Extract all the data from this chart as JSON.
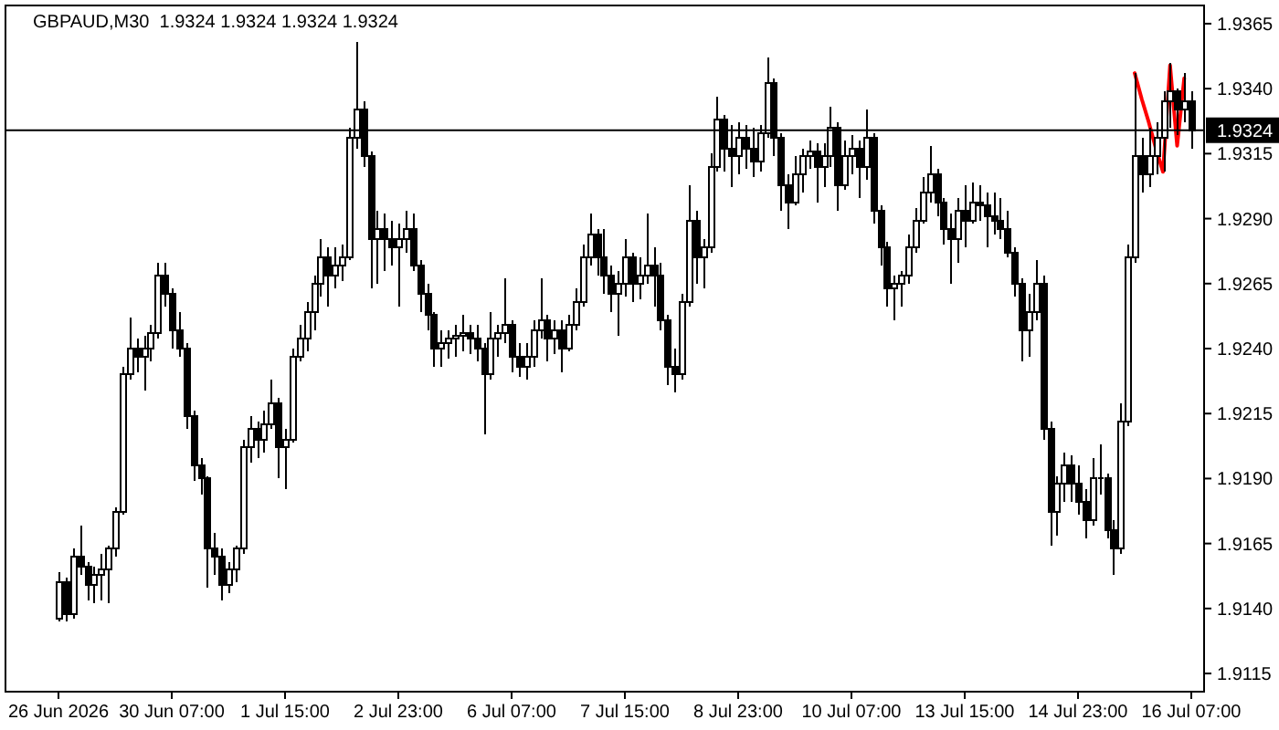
{
  "chart_data": {
    "type": "candlestick",
    "title": "GBPAUD,M30  1.9324 1.9324 1.9324 1.9324",
    "color": "#000000",
    "categories": [
      "26 Jun 2026",
      null,
      null,
      null,
      null,
      null,
      null,
      null,
      null,
      null,
      null,
      null,
      null,
      null,
      null,
      null,
      "30 Jun 07:00",
      null,
      null,
      null,
      null,
      null,
      null,
      null,
      null,
      null,
      null,
      null,
      null,
      null,
      null,
      null,
      "1 Jul 15:00",
      null,
      null,
      null,
      null,
      null,
      null,
      null,
      null,
      null,
      null,
      null,
      null,
      null,
      null,
      null,
      "2 Jul 23:00",
      null,
      null,
      null,
      null,
      null,
      null,
      null,
      null,
      null,
      null,
      null,
      null,
      null,
      null,
      null,
      "6 Jul 07:00",
      null,
      null,
      null,
      null,
      null,
      null,
      null,
      null,
      null,
      null,
      null,
      null,
      null,
      null,
      null,
      "7 Jul 15:00",
      null,
      null,
      null,
      null,
      null,
      null,
      null,
      null,
      null,
      null,
      null,
      null,
      null,
      null,
      null,
      "8 Jul 23:00",
      null,
      null,
      null,
      null,
      null,
      null,
      null,
      null,
      null,
      null,
      null,
      null,
      null,
      null,
      null,
      "10 Jul 07:00",
      null,
      null,
      null,
      null,
      null,
      null,
      null,
      null,
      null,
      null,
      null,
      null,
      null,
      null,
      null,
      "13 Jul 15:00",
      null,
      null,
      null,
      null,
      null,
      null,
      null,
      null,
      null,
      null,
      null,
      null,
      null,
      null,
      null,
      "14 Jul 23:00",
      null,
      null,
      null,
      null,
      null,
      null,
      null,
      null,
      null,
      null,
      null,
      null,
      null,
      null,
      null,
      "16 Jul 07:00"
    ],
    "ohlc": [
      [
        1.9136,
        1.9154,
        1.9135,
        1.915
      ],
      [
        1.915,
        1.9152,
        1.9135,
        1.9138
      ],
      [
        1.9138,
        1.9163,
        1.9136,
        1.916
      ],
      [
        1.916,
        1.9172,
        1.9153,
        1.9156
      ],
      [
        1.9156,
        1.9158,
        1.9143,
        1.9149
      ],
      [
        1.9149,
        1.9156,
        1.9142,
        1.9153
      ],
      [
        1.9153,
        1.9161,
        1.9143,
        1.9155
      ],
      [
        1.9155,
        1.9164,
        1.9142,
        1.9163
      ],
      [
        1.9163,
        1.9179,
        1.916,
        1.9177
      ],
      [
        1.9177,
        1.9233,
        1.9176,
        1.923
      ],
      [
        1.923,
        1.9252,
        1.9228,
        1.924
      ],
      [
        1.924,
        1.9244,
        1.9231,
        1.9237
      ],
      [
        1.9237,
        1.9245,
        1.9224,
        1.924
      ],
      [
        1.924,
        1.9249,
        1.9235,
        1.9246
      ],
      [
        1.9246,
        1.9273,
        1.9244,
        1.9268
      ],
      [
        1.9268,
        1.9273,
        1.9256,
        1.9261
      ],
      [
        1.9261,
        1.9263,
        1.924,
        1.9247
      ],
      [
        1.9247,
        1.9254,
        1.9237,
        1.924
      ],
      [
        1.924,
        1.9242,
        1.9209,
        1.9214
      ],
      [
        1.9214,
        1.9216,
        1.9189,
        1.9195
      ],
      [
        1.9195,
        1.9198,
        1.9184,
        1.919
      ],
      [
        1.919,
        1.9191,
        1.9148,
        1.9163
      ],
      [
        1.9163,
        1.9169,
        1.9153,
        1.916
      ],
      [
        1.916,
        1.9163,
        1.9143,
        1.9149
      ],
      [
        1.9149,
        1.9158,
        1.9146,
        1.9155
      ],
      [
        1.9155,
        1.9164,
        1.915,
        1.9163
      ],
      [
        1.9163,
        1.9205,
        1.9161,
        1.9202
      ],
      [
        1.9202,
        1.9214,
        1.9196,
        1.9209
      ],
      [
        1.9209,
        1.9212,
        1.9198,
        1.9205
      ],
      [
        1.9205,
        1.9216,
        1.92,
        1.9211
      ],
      [
        1.9211,
        1.9228,
        1.9209,
        1.9219
      ],
      [
        1.9219,
        1.9221,
        1.919,
        1.9202
      ],
      [
        1.9202,
        1.9209,
        1.9186,
        1.9205
      ],
      [
        1.9205,
        1.924,
        1.9204,
        1.9237
      ],
      [
        1.9237,
        1.9249,
        1.9235,
        1.9244
      ],
      [
        1.9244,
        1.9258,
        1.9239,
        1.9254
      ],
      [
        1.9254,
        1.9268,
        1.9247,
        1.9265
      ],
      [
        1.9265,
        1.9282,
        1.926,
        1.9275
      ],
      [
        1.9275,
        1.9279,
        1.9256,
        1.9268
      ],
      [
        1.9268,
        1.9279,
        1.9263,
        1.9272
      ],
      [
        1.9272,
        1.928,
        1.9266,
        1.9275
      ],
      [
        1.9275,
        1.9325,
        1.9274,
        1.9321
      ],
      [
        1.9321,
        1.9358,
        1.9317,
        1.9332
      ],
      [
        1.9332,
        1.9335,
        1.931,
        1.9314
      ],
      [
        1.9314,
        1.9316,
        1.9263,
        1.9282
      ],
      [
        1.9282,
        1.9293,
        1.9265,
        1.9286
      ],
      [
        1.9286,
        1.9292,
        1.927,
        1.9282
      ],
      [
        1.9282,
        1.9289,
        1.9272,
        1.9279
      ],
      [
        1.9279,
        1.9288,
        1.9256,
        1.9282
      ],
      [
        1.9282,
        1.9293,
        1.9277,
        1.9286
      ],
      [
        1.9286,
        1.9292,
        1.927,
        1.9272
      ],
      [
        1.9272,
        1.9274,
        1.9254,
        1.9261
      ],
      [
        1.9261,
        1.9265,
        1.9247,
        1.9253
      ],
      [
        1.9253,
        1.9254,
        1.9233,
        1.924
      ],
      [
        1.924,
        1.9247,
        1.9233,
        1.9242
      ],
      [
        1.9242,
        1.9247,
        1.9236,
        1.9244
      ],
      [
        1.9244,
        1.9249,
        1.9237,
        1.9245
      ],
      [
        1.9245,
        1.9253,
        1.9239,
        1.9246
      ],
      [
        1.9246,
        1.9249,
        1.9238,
        1.9244
      ],
      [
        1.9244,
        1.9249,
        1.9235,
        1.924
      ],
      [
        1.924,
        1.9242,
        1.9207,
        1.923
      ],
      [
        1.923,
        1.9254,
        1.9228,
        1.9244
      ],
      [
        1.9244,
        1.9249,
        1.9237,
        1.9246
      ],
      [
        1.9246,
        1.9267,
        1.9242,
        1.9249
      ],
      [
        1.9249,
        1.9251,
        1.9231,
        1.9237
      ],
      [
        1.9237,
        1.9242,
        1.9229,
        1.9233
      ],
      [
        1.9233,
        1.9242,
        1.9228,
        1.9237
      ],
      [
        1.9237,
        1.9251,
        1.9233,
        1.9247
      ],
      [
        1.9247,
        1.9267,
        1.9244,
        1.9251
      ],
      [
        1.9251,
        1.9253,
        1.9235,
        1.9244
      ],
      [
        1.9244,
        1.9251,
        1.9238,
        1.9247
      ],
      [
        1.9247,
        1.9251,
        1.9231,
        1.924
      ],
      [
        1.924,
        1.9253,
        1.9239,
        1.9249
      ],
      [
        1.9249,
        1.9263,
        1.9247,
        1.9258
      ],
      [
        1.9258,
        1.928,
        1.9256,
        1.9275
      ],
      [
        1.9275,
        1.9292,
        1.9272,
        1.9284
      ],
      [
        1.9284,
        1.9286,
        1.9268,
        1.9275
      ],
      [
        1.9275,
        1.9286,
        1.9261,
        1.9268
      ],
      [
        1.9268,
        1.9272,
        1.9254,
        1.9261
      ],
      [
        1.9261,
        1.927,
        1.9245,
        1.9265
      ],
      [
        1.9265,
        1.9282,
        1.926,
        1.9275
      ],
      [
        1.9275,
        1.9277,
        1.9258,
        1.9265
      ],
      [
        1.9265,
        1.9275,
        1.9259,
        1.9268
      ],
      [
        1.9268,
        1.9292,
        1.9265,
        1.9272
      ],
      [
        1.9272,
        1.9279,
        1.9256,
        1.9268
      ],
      [
        1.9268,
        1.9273,
        1.9247,
        1.9251
      ],
      [
        1.9251,
        1.9253,
        1.9226,
        1.9233
      ],
      [
        1.9233,
        1.924,
        1.9223,
        1.923
      ],
      [
        1.923,
        1.9261,
        1.9228,
        1.9258
      ],
      [
        1.9258,
        1.9303,
        1.9256,
        1.9289
      ],
      [
        1.9289,
        1.9293,
        1.9265,
        1.9275
      ],
      [
        1.9275,
        1.9282,
        1.9263,
        1.9279
      ],
      [
        1.9279,
        1.9315,
        1.9277,
        1.931
      ],
      [
        1.931,
        1.9337,
        1.9308,
        1.9328
      ],
      [
        1.9328,
        1.933,
        1.9308,
        1.9317
      ],
      [
        1.9317,
        1.9326,
        1.9302,
        1.9314
      ],
      [
        1.9314,
        1.9327,
        1.9307,
        1.9321
      ],
      [
        1.9321,
        1.9326,
        1.9309,
        1.9317
      ],
      [
        1.9317,
        1.9325,
        1.9306,
        1.9312
      ],
      [
        1.9312,
        1.9326,
        1.9308,
        1.9323
      ],
      [
        1.9323,
        1.9352,
        1.9321,
        1.9342
      ],
      [
        1.9342,
        1.9344,
        1.9314,
        1.9321
      ],
      [
        1.9321,
        1.9323,
        1.9293,
        1.9303
      ],
      [
        1.9303,
        1.9307,
        1.9286,
        1.9296
      ],
      [
        1.9296,
        1.9314,
        1.9295,
        1.9307
      ],
      [
        1.9307,
        1.9317,
        1.93,
        1.9314
      ],
      [
        1.9314,
        1.932,
        1.9309,
        1.9316
      ],
      [
        1.9316,
        1.9319,
        1.9296,
        1.931
      ],
      [
        1.931,
        1.9319,
        1.9302,
        1.9314
      ],
      [
        1.9314,
        1.9333,
        1.931,
        1.9325
      ],
      [
        1.9325,
        1.9327,
        1.9293,
        1.9303
      ],
      [
        1.9303,
        1.932,
        1.9301,
        1.9314
      ],
      [
        1.9314,
        1.9322,
        1.9307,
        1.9317
      ],
      [
        1.9317,
        1.932,
        1.9298,
        1.931
      ],
      [
        1.931,
        1.9332,
        1.9305,
        1.9321
      ],
      [
        1.9321,
        1.9323,
        1.9288,
        1.9293
      ],
      [
        1.9293,
        1.9295,
        1.9272,
        1.9279
      ],
      [
        1.9279,
        1.9281,
        1.9256,
        1.9263
      ],
      [
        1.9263,
        1.9268,
        1.9251,
        1.9265
      ],
      [
        1.9265,
        1.927,
        1.9256,
        1.9268
      ],
      [
        1.9268,
        1.9284,
        1.9265,
        1.9279
      ],
      [
        1.9279,
        1.9294,
        1.9277,
        1.9289
      ],
      [
        1.9289,
        1.9306,
        1.9288,
        1.93
      ],
      [
        1.93,
        1.9318,
        1.9296,
        1.9307
      ],
      [
        1.9307,
        1.9309,
        1.9291,
        1.9296
      ],
      [
        1.9296,
        1.9298,
        1.928,
        1.9286
      ],
      [
        1.9286,
        1.9292,
        1.9265,
        1.9282
      ],
      [
        1.9282,
        1.9298,
        1.9273,
        1.9293
      ],
      [
        1.9293,
        1.9303,
        1.9279,
        1.9289
      ],
      [
        1.9289,
        1.9304,
        1.9288,
        1.9296
      ],
      [
        1.9296,
        1.9303,
        1.9289,
        1.9295
      ],
      [
        1.9295,
        1.93,
        1.9279,
        1.9291
      ],
      [
        1.9291,
        1.93,
        1.9284,
        1.9289
      ],
      [
        1.9289,
        1.9298,
        1.9282,
        1.9286
      ],
      [
        1.9286,
        1.9293,
        1.9275,
        1.9277
      ],
      [
        1.9277,
        1.9279,
        1.926,
        1.9265
      ],
      [
        1.9265,
        1.9267,
        1.9235,
        1.9247
      ],
      [
        1.9247,
        1.9261,
        1.9237,
        1.9254
      ],
      [
        1.9254,
        1.9274,
        1.9251,
        1.9265
      ],
      [
        1.9265,
        1.9268,
        1.9205,
        1.9209
      ],
      [
        1.9209,
        1.9212,
        1.9164,
        1.9177
      ],
      [
        1.9177,
        1.9191,
        1.9168,
        1.9188
      ],
      [
        1.9188,
        1.92,
        1.9181,
        1.9195
      ],
      [
        1.9195,
        1.9199,
        1.9181,
        1.9188
      ],
      [
        1.9188,
        1.9195,
        1.9176,
        1.9181
      ],
      [
        1.9181,
        1.9186,
        1.9167,
        1.9174
      ],
      [
        1.9174,
        1.9198,
        1.9172,
        1.919
      ],
      [
        1.919,
        1.9203,
        1.9184,
        1.919
      ],
      [
        1.919,
        1.9192,
        1.9167,
        1.917
      ],
      [
        1.917,
        1.9174,
        1.9153,
        1.9163
      ],
      [
        1.9163,
        1.9219,
        1.9161,
        1.9212
      ],
      [
        1.9212,
        1.928,
        1.921,
        1.9275
      ],
      [
        1.9275,
        1.9346,
        1.9273,
        1.9314
      ],
      [
        1.9314,
        1.9321,
        1.93,
        1.9307
      ],
      [
        1.9307,
        1.9325,
        1.9302,
        1.9314
      ],
      [
        1.9314,
        1.9327,
        1.9307,
        1.9321
      ],
      [
        1.9321,
        1.9339,
        1.9308,
        1.9335
      ],
      [
        1.9335,
        1.935,
        1.9325,
        1.9339
      ],
      [
        1.9339,
        1.934,
        1.9322,
        1.9332
      ],
      [
        1.9332,
        1.9346,
        1.9327,
        1.9335
      ],
      [
        1.9335,
        1.9339,
        1.9317,
        1.9324
      ]
    ],
    "series": [
      {
        "type": "line",
        "color": "#ff0000",
        "values": [
          null,
          null,
          null,
          null,
          null,
          null,
          null,
          null,
          null,
          null,
          null,
          null,
          null,
          null,
          null,
          null,
          null,
          null,
          null,
          null,
          null,
          null,
          null,
          null,
          null,
          null,
          null,
          null,
          null,
          null,
          null,
          null,
          null,
          null,
          null,
          null,
          null,
          null,
          null,
          null,
          null,
          null,
          null,
          null,
          null,
          null,
          null,
          null,
          null,
          null,
          null,
          null,
          null,
          null,
          null,
          null,
          null,
          null,
          null,
          null,
          null,
          null,
          null,
          null,
          null,
          null,
          null,
          null,
          null,
          null,
          null,
          null,
          null,
          null,
          null,
          null,
          null,
          null,
          null,
          null,
          null,
          null,
          null,
          null,
          null,
          null,
          null,
          null,
          null,
          null,
          null,
          null,
          null,
          null,
          null,
          null,
          null,
          null,
          null,
          null,
          null,
          null,
          null,
          null,
          null,
          null,
          null,
          null,
          null,
          null,
          null,
          null,
          null,
          null,
          null,
          null,
          null,
          null,
          null,
          null,
          null,
          null,
          null,
          null,
          null,
          null,
          null,
          null,
          null,
          null,
          null,
          null,
          null,
          null,
          null,
          null,
          null,
          null,
          null,
          null,
          null,
          null,
          null,
          null,
          null,
          null,
          null,
          null,
          null,
          null,
          null,
          null,
          1.9346,
          1.9336,
          1.9327,
          1.9317,
          1.9308,
          1.9349,
          1.9318,
          1.9344,
          null
        ]
      }
    ],
    "ylim": [
      1.9108,
      1.9372
    ],
    "yticks": [
      1.9115,
      {
        "value": 1.914,
        "label": "1.9140"
      },
      1.9165,
      {
        "value": 1.919,
        "label": "1.9190"
      },
      1.9215,
      {
        "value": 1.924,
        "label": "1.9240"
      },
      1.9265,
      {
        "value": 1.929,
        "label": "1.9290"
      },
      1.9315,
      {
        "value": 1.934,
        "label": "1.9340"
      },
      1.9365
    ],
    "ref_lines": [
      {
        "axis": "y",
        "value": 1.9324,
        "label": "1.9324",
        "color": "#000000"
      }
    ]
  }
}
